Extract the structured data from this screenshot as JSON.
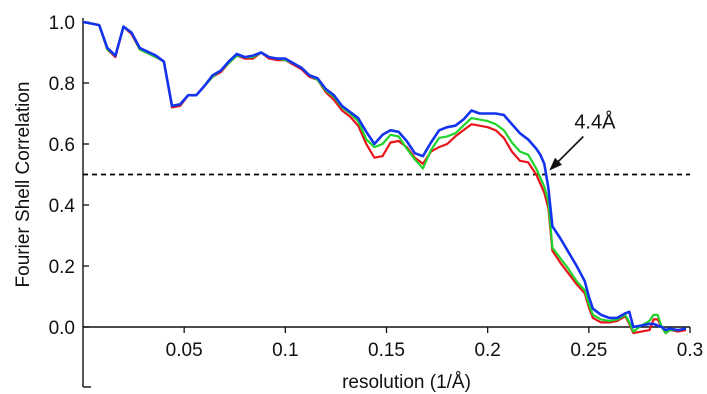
{
  "chart_data": {
    "type": "line",
    "title": "",
    "xlabel": "resolution (1/Å)",
    "ylabel": "Fourier Shell Correlation",
    "xlim": [
      0.0,
      0.3
    ],
    "ylim": [
      0.0,
      1.0
    ],
    "xticks": [
      0.05,
      0.1,
      0.15,
      0.2,
      0.25,
      0.3
    ],
    "xtick_labels": [
      "0.05",
      "0.1",
      "0.15",
      "0.2",
      "0.25",
      "0.3"
    ],
    "yticks": [
      0.0,
      0.2,
      0.4,
      0.6,
      0.8,
      1.0
    ],
    "ytick_labels": [
      "0.0",
      "0.2",
      "0.4",
      "0.6",
      "0.8",
      "1.0"
    ],
    "grid": false,
    "legend": "none",
    "threshold": {
      "y": 0.5,
      "style": "dashed",
      "color": "#000000"
    },
    "annotation": {
      "text": "4.4Å",
      "x": 0.228,
      "y": 0.5
    },
    "series": [
      {
        "color": "#e8141c",
        "x": [
          0.0,
          0.004,
          0.008,
          0.012,
          0.016,
          0.02,
          0.024,
          0.028,
          0.036,
          0.04,
          0.044,
          0.048,
          0.052,
          0.056,
          0.06,
          0.064,
          0.068,
          0.072,
          0.076,
          0.08,
          0.084,
          0.088,
          0.092,
          0.096,
          0.1,
          0.104,
          0.108,
          0.112,
          0.116,
          0.12,
          0.124,
          0.128,
          0.132,
          0.136,
          0.14,
          0.144,
          0.148,
          0.152,
          0.156,
          0.16,
          0.164,
          0.168,
          0.172,
          0.176,
          0.18,
          0.184,
          0.188,
          0.192,
          0.196,
          0.2,
          0.204,
          0.208,
          0.212,
          0.216,
          0.22,
          0.224,
          0.226,
          0.228,
          0.23,
          0.232,
          0.236,
          0.24,
          0.244,
          0.248,
          0.25,
          0.252,
          0.256,
          0.26,
          0.264,
          0.268,
          0.27,
          0.272,
          0.276,
          0.28,
          0.282,
          0.284,
          0.286,
          0.288,
          0.29,
          0.294,
          0.298
        ],
        "values": [
          1.0,
          0.995,
          0.99,
          0.91,
          0.885,
          0.985,
          0.96,
          0.91,
          0.885,
          0.87,
          0.72,
          0.725,
          0.76,
          0.76,
          0.79,
          0.82,
          0.835,
          0.865,
          0.89,
          0.88,
          0.88,
          0.9,
          0.88,
          0.875,
          0.875,
          0.86,
          0.845,
          0.82,
          0.81,
          0.77,
          0.745,
          0.71,
          0.69,
          0.66,
          0.6,
          0.555,
          0.56,
          0.605,
          0.61,
          0.59,
          0.555,
          0.535,
          0.575,
          0.59,
          0.6,
          0.625,
          0.645,
          0.665,
          0.66,
          0.655,
          0.645,
          0.62,
          0.575,
          0.545,
          0.54,
          0.5,
          0.47,
          0.44,
          0.39,
          0.25,
          0.21,
          0.175,
          0.14,
          0.11,
          0.065,
          0.03,
          0.015,
          0.015,
          0.02,
          0.035,
          0.01,
          -0.02,
          -0.015,
          -0.01,
          0.025,
          0.025,
          0.0,
          -0.02,
          -0.01,
          -0.015,
          -0.01
        ]
      },
      {
        "color": "#1fd42a",
        "x": [
          0.0,
          0.004,
          0.008,
          0.012,
          0.016,
          0.02,
          0.024,
          0.028,
          0.036,
          0.04,
          0.044,
          0.048,
          0.052,
          0.056,
          0.06,
          0.064,
          0.068,
          0.072,
          0.076,
          0.08,
          0.084,
          0.088,
          0.092,
          0.096,
          0.1,
          0.104,
          0.108,
          0.112,
          0.116,
          0.12,
          0.124,
          0.128,
          0.132,
          0.136,
          0.14,
          0.144,
          0.148,
          0.152,
          0.156,
          0.16,
          0.164,
          0.168,
          0.172,
          0.176,
          0.18,
          0.184,
          0.188,
          0.192,
          0.196,
          0.2,
          0.204,
          0.208,
          0.212,
          0.216,
          0.22,
          0.224,
          0.226,
          0.228,
          0.23,
          0.232,
          0.236,
          0.24,
          0.244,
          0.248,
          0.25,
          0.252,
          0.256,
          0.26,
          0.264,
          0.268,
          0.27,
          0.272,
          0.276,
          0.28,
          0.282,
          0.284,
          0.286,
          0.288,
          0.29,
          0.294,
          0.298
        ],
        "values": [
          1.0,
          0.995,
          0.99,
          0.91,
          0.89,
          0.985,
          0.965,
          0.91,
          0.885,
          0.87,
          0.725,
          0.73,
          0.76,
          0.76,
          0.79,
          0.82,
          0.84,
          0.865,
          0.89,
          0.885,
          0.885,
          0.9,
          0.885,
          0.88,
          0.875,
          0.865,
          0.85,
          0.825,
          0.81,
          0.775,
          0.755,
          0.72,
          0.7,
          0.675,
          0.615,
          0.59,
          0.6,
          0.63,
          0.625,
          0.585,
          0.55,
          0.52,
          0.58,
          0.62,
          0.625,
          0.635,
          0.66,
          0.685,
          0.68,
          0.675,
          0.665,
          0.645,
          0.605,
          0.575,
          0.565,
          0.52,
          0.49,
          0.46,
          0.41,
          0.26,
          0.225,
          0.19,
          0.15,
          0.12,
          0.075,
          0.04,
          0.025,
          0.02,
          0.025,
          0.04,
          0.015,
          -0.015,
          0.005,
          0.02,
          0.04,
          0.04,
          0.0,
          -0.02,
          -0.01,
          -0.01,
          -0.005
        ]
      },
      {
        "color": "#1433ee",
        "x": [
          0.0,
          0.004,
          0.008,
          0.012,
          0.016,
          0.02,
          0.024,
          0.028,
          0.036,
          0.04,
          0.044,
          0.048,
          0.052,
          0.056,
          0.06,
          0.064,
          0.068,
          0.072,
          0.076,
          0.08,
          0.084,
          0.088,
          0.092,
          0.096,
          0.1,
          0.104,
          0.108,
          0.112,
          0.116,
          0.12,
          0.124,
          0.128,
          0.132,
          0.136,
          0.14,
          0.144,
          0.148,
          0.152,
          0.156,
          0.16,
          0.164,
          0.168,
          0.172,
          0.176,
          0.18,
          0.184,
          0.188,
          0.192,
          0.196,
          0.2,
          0.204,
          0.208,
          0.212,
          0.216,
          0.22,
          0.224,
          0.226,
          0.228,
          0.23,
          0.232,
          0.236,
          0.24,
          0.244,
          0.248,
          0.25,
          0.252,
          0.256,
          0.26,
          0.264,
          0.268,
          0.27,
          0.272,
          0.276,
          0.28,
          0.282,
          0.284,
          0.286,
          0.288,
          0.29,
          0.294,
          0.298
        ],
        "values": [
          1.0,
          0.995,
          0.99,
          0.915,
          0.89,
          0.985,
          0.965,
          0.915,
          0.89,
          0.87,
          0.725,
          0.73,
          0.76,
          0.76,
          0.79,
          0.825,
          0.84,
          0.87,
          0.895,
          0.885,
          0.89,
          0.9,
          0.885,
          0.88,
          0.88,
          0.865,
          0.85,
          0.825,
          0.815,
          0.78,
          0.76,
          0.725,
          0.705,
          0.685,
          0.64,
          0.6,
          0.63,
          0.645,
          0.64,
          0.61,
          0.57,
          0.56,
          0.605,
          0.645,
          0.655,
          0.66,
          0.68,
          0.71,
          0.7,
          0.7,
          0.7,
          0.695,
          0.665,
          0.635,
          0.615,
          0.585,
          0.565,
          0.535,
          0.455,
          0.33,
          0.29,
          0.245,
          0.2,
          0.15,
          0.1,
          0.06,
          0.04,
          0.03,
          0.03,
          0.045,
          0.05,
          0.0,
          0.005,
          0.01,
          0.01,
          0.005,
          0.0,
          -0.01,
          -0.005,
          -0.01,
          -0.005
        ]
      }
    ]
  }
}
